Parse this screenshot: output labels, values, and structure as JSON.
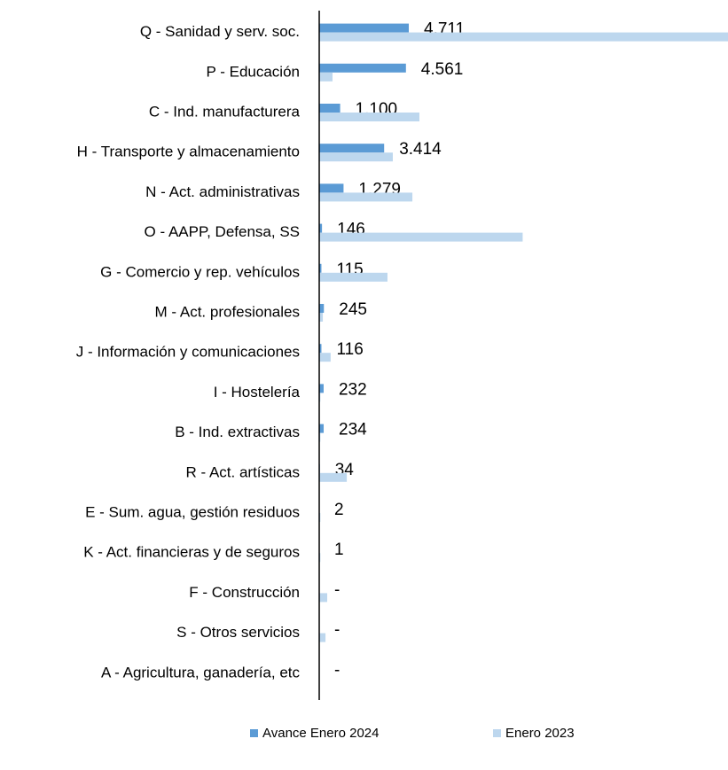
{
  "chart_data": {
    "type": "bar",
    "orientation": "horizontal",
    "categories": [
      "Q - Sanidad y serv. soc.",
      "P - Educación",
      "C - Ind. manufacturera",
      "H - Transporte y almacenamiento",
      "N - Act. administrativas",
      "O - AAPP, Defensa, SS",
      "G - Comercio y rep. vehículos",
      "M - Act. profesionales",
      "J - Información y comunicaciones",
      "I - Hostelería",
      "B - Ind. extractivas",
      "R - Act. artísticas",
      "E - Sum. agua, gestión residuos",
      "K - Act. financieras y de seguros",
      "F - Construcción",
      "S - Otros servicios",
      "A - Agricultura, ganadería, etc"
    ],
    "series": [
      {
        "name": "Avance Enero 2024",
        "color": "#5b9bd5",
        "values": [
          4711,
          4561,
          1100,
          3414,
          1279,
          146,
          115,
          245,
          116,
          232,
          234,
          34,
          2,
          1,
          0,
          0,
          0
        ],
        "value_labels": [
          "4.711",
          "4.561",
          "1.100",
          "3.414",
          "1.279",
          "146",
          "115",
          "245",
          "116",
          "232",
          "234",
          "34",
          "2",
          "1",
          "-",
          "-",
          "-"
        ]
      },
      {
        "name": "Enero 2023",
        "color": "#bdd7ee",
        "values": [
          21500,
          700,
          5270,
          3870,
          4900,
          10700,
          3590,
          190,
          600,
          60,
          60,
          1450,
          60,
          60,
          420,
          330,
          0
        ]
      }
    ],
    "xlim": [
      0,
      21500
    ],
    "legend": "bottom"
  }
}
